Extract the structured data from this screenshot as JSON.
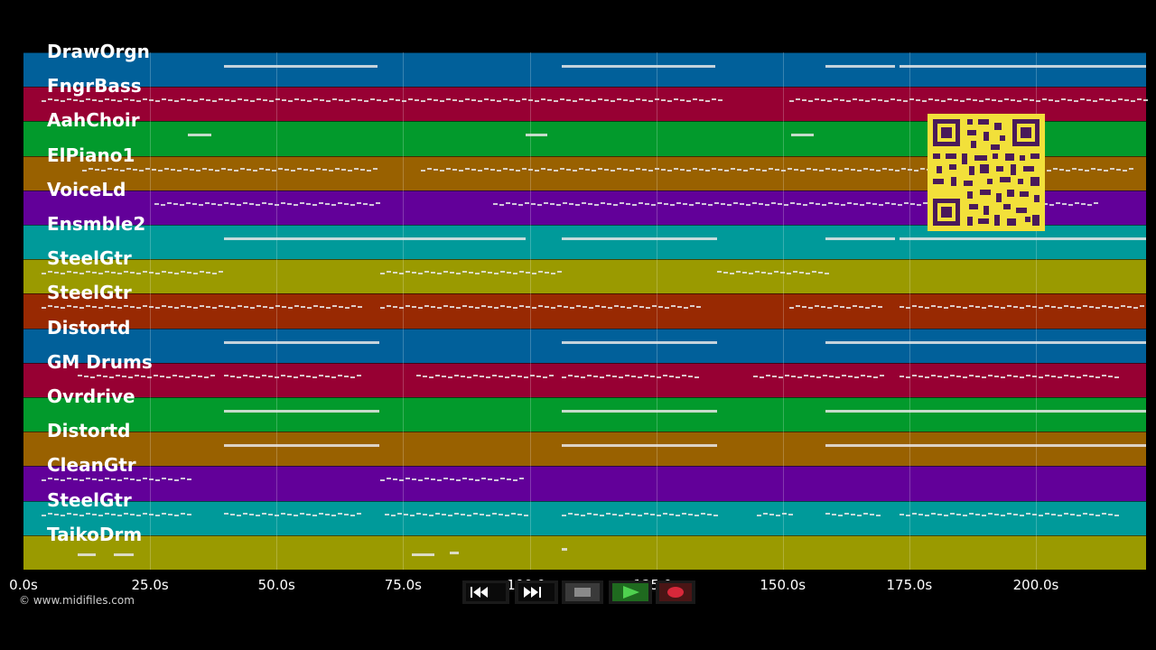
{
  "lanes": [
    {
      "label": "DrawOrgn",
      "color": "#01609a"
    },
    {
      "label": "FngrBass",
      "color": "#970033"
    },
    {
      "label": "AahChoir",
      "color": "#029a2c"
    },
    {
      "label": "ElPiano1",
      "color": "#996100"
    },
    {
      "label": "VoiceLd",
      "color": "#620099"
    },
    {
      "label": "Ensmble2",
      "color": "#009a9a"
    },
    {
      "label": "SteelGtr",
      "color": "#9a9a00"
    },
    {
      "label": "SteelGtr",
      "color": "#982902"
    },
    {
      "label": "Distortd",
      "color": "#01609a"
    },
    {
      "label": "GM Drums",
      "color": "#970033"
    },
    {
      "label": "Ovrdrive",
      "color": "#029a2c"
    },
    {
      "label": "Distortd",
      "color": "#996100"
    },
    {
      "label": "CleanGtr",
      "color": "#620099"
    },
    {
      "label": "SteelGtr",
      "color": "#009a9a"
    },
    {
      "label": "TaikoDrm",
      "color": "#9a9a00"
    }
  ],
  "timeline": {
    "ticks": [
      "0.0s",
      "25.0s",
      "50.0s",
      "75.0s",
      "100.0s",
      "125.0s",
      "150.0s",
      "175.0s",
      "200.0s"
    ],
    "tick_values": [
      0,
      25,
      50,
      75,
      100,
      125,
      150,
      175,
      200
    ],
    "max_seconds": 222
  },
  "copyright": "© www.midifiles.com",
  "transport": {
    "rewind": "rewind-icon",
    "fast_forward": "fast-forward-icon",
    "stop": "stop-icon",
    "play": "play-icon",
    "record": "record-icon"
  },
  "colors": {
    "background": "#000000",
    "qr_background": "#f2e03a",
    "qr_foreground": "#4a1a5a",
    "play": "#3fae3f",
    "record": "#d8283a"
  }
}
